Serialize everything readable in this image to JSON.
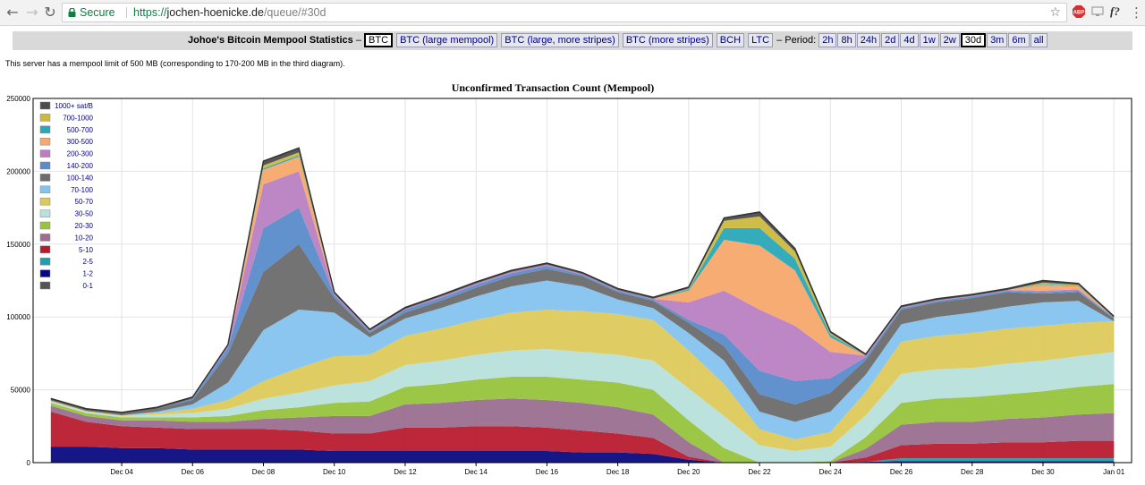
{
  "browser": {
    "secure_label": "Secure",
    "url_scheme": "https://",
    "url_host": "jochen-hoenicke.de",
    "url_path": "/queue/#30d",
    "back_icon": "back-arrow-icon",
    "forward_icon": "forward-arrow-icon",
    "reload_icon": "reload-icon",
    "star_icon": "star-icon",
    "extension_icons": [
      "abp-icon",
      "cast-icon",
      "formula-icon"
    ],
    "formula_label": "f?",
    "menu_icon": "three-dots-icon"
  },
  "header": {
    "site_title": "Johoe's Bitcoin Mempool Statistics",
    "dash": "–",
    "links": [
      {
        "label": "BTC",
        "active": true
      },
      {
        "label": "BTC (large mempool)",
        "active": false
      },
      {
        "label": "BTC (large, more stripes)",
        "active": false
      },
      {
        "label": "BTC (more stripes)",
        "active": false
      },
      {
        "label": "BCH",
        "active": false
      },
      {
        "label": "LTC",
        "active": false
      }
    ],
    "period_label": "– Period:",
    "periods": [
      {
        "label": "2h",
        "active": false
      },
      {
        "label": "8h",
        "active": false
      },
      {
        "label": "24h",
        "active": false
      },
      {
        "label": "2d",
        "active": false
      },
      {
        "label": "4d",
        "active": false
      },
      {
        "label": "1w",
        "active": false
      },
      {
        "label": "2w",
        "active": false
      },
      {
        "label": "30d",
        "active": true
      },
      {
        "label": "3m",
        "active": false
      },
      {
        "label": "6m",
        "active": false
      },
      {
        "label": "all",
        "active": false
      }
    ]
  },
  "notice": "This server has a mempool limit of 500 MB (corresponding to 170-200 MB in the third diagram).",
  "chart_data": {
    "type": "area",
    "stacked": true,
    "title": "Unconfirmed Transaction Count (Mempool)",
    "xlabel": "",
    "ylabel": "",
    "ylim": [
      0,
      250000
    ],
    "yticks": [
      0,
      50000,
      100000,
      150000,
      200000,
      250000
    ],
    "xlim": [
      "2017-12-02",
      "2018-01-01 12:00"
    ],
    "xticks": [
      "Dec 04",
      "Dec 06",
      "Dec 08",
      "Dec 10",
      "Dec 12",
      "Dec 14",
      "Dec 16",
      "Dec 18",
      "Dec 20",
      "Dec 22",
      "Dec 24",
      "Dec 26",
      "Dec 28",
      "Dec 30",
      "Jan 01"
    ],
    "grid": true,
    "legend_position": "top-left",
    "legend_entries": [
      "1000+ sat/B",
      "700-1000",
      "500-700",
      "300-500",
      "200-300",
      "140-200",
      "100-140",
      "70-100",
      "50-70",
      "30-50",
      "20-30",
      "10-20",
      "5-10",
      "2-5",
      "1-2",
      "0-1"
    ],
    "x": [
      "Dec 02",
      "Dec 03",
      "Dec 04",
      "Dec 05",
      "Dec 06",
      "Dec 07",
      "Dec 08",
      "Dec 09",
      "Dec 10",
      "Dec 11",
      "Dec 12",
      "Dec 13",
      "Dec 14",
      "Dec 15",
      "Dec 16",
      "Dec 17",
      "Dec 18",
      "Dec 19",
      "Dec 20",
      "Dec 21",
      "Dec 22",
      "Dec 23",
      "Dec 24",
      "Dec 25",
      "Dec 26",
      "Dec 27",
      "Dec 28",
      "Dec 29",
      "Dec 30",
      "Dec 31",
      "Jan 01"
    ],
    "series": [
      {
        "name": "0-1",
        "color": "#555555",
        "values": [
          0,
          0,
          0,
          0,
          0,
          0,
          0,
          0,
          0,
          0,
          0,
          0,
          0,
          0,
          0,
          0,
          0,
          0,
          0,
          0,
          0,
          0,
          0,
          0,
          0,
          0,
          0,
          0,
          0,
          0,
          0
        ]
      },
      {
        "name": "1-2",
        "color": "#0a0a80",
        "values": [
          11000,
          11000,
          10000,
          10000,
          9000,
          9000,
          9000,
          9000,
          8000,
          8000,
          8000,
          8000,
          8000,
          8000,
          8000,
          7000,
          7000,
          6000,
          2000,
          0,
          0,
          0,
          0,
          500,
          1000,
          1000,
          1000,
          1000,
          1000,
          1000,
          1000
        ]
      },
      {
        "name": "2-5",
        "color": "#1f9fae",
        "values": [
          0,
          0,
          0,
          0,
          0,
          0,
          0,
          0,
          0,
          0,
          0,
          0,
          0,
          0,
          0,
          0,
          0,
          0,
          0,
          0,
          0,
          0,
          0,
          0,
          2000,
          2000,
          2000,
          2000,
          2000,
          2000,
          2000
        ]
      },
      {
        "name": "5-10",
        "color": "#b81b2e",
        "values": [
          24000,
          17000,
          15000,
          14000,
          14000,
          14000,
          14000,
          13000,
          12000,
          12000,
          16000,
          16000,
          17000,
          17000,
          16000,
          15000,
          13000,
          11000,
          2000,
          0,
          0,
          0,
          0,
          3000,
          9000,
          10000,
          10000,
          11000,
          11000,
          12000,
          12000
        ]
      },
      {
        "name": "10-20",
        "color": "#9a6f8f",
        "values": [
          4000,
          4000,
          4000,
          5000,
          5000,
          5000,
          7000,
          9000,
          12000,
          12000,
          16000,
          17000,
          18000,
          19000,
          19000,
          19000,
          18000,
          16000,
          10000,
          0,
          0,
          0,
          0,
          6000,
          14000,
          15000,
          15000,
          16000,
          17000,
          18000,
          19000
        ]
      },
      {
        "name": "20-30",
        "color": "#97c43c",
        "values": [
          2000,
          2000,
          2000,
          2000,
          3000,
          4000,
          6000,
          7000,
          9000,
          10000,
          12000,
          13000,
          14000,
          15000,
          16000,
          16000,
          17000,
          17000,
          15000,
          10000,
          0,
          0,
          1000,
          8000,
          15000,
          16000,
          17000,
          17000,
          18000,
          19000,
          20000
        ]
      },
      {
        "name": "30-50",
        "color": "#b8e0dc",
        "values": [
          1000,
          1000,
          1000,
          2000,
          3000,
          5000,
          8000,
          10000,
          12000,
          14000,
          15000,
          16000,
          17000,
          18000,
          19000,
          19000,
          19000,
          20000,
          22000,
          22000,
          12000,
          8000,
          10000,
          15000,
          20000,
          20000,
          20000,
          21000,
          21000,
          21000,
          22000
        ]
      },
      {
        "name": "50-70",
        "color": "#ddc95b",
        "values": [
          500,
          500,
          500,
          1000,
          3000,
          6000,
          12000,
          17000,
          20000,
          18000,
          20000,
          22000,
          24000,
          26000,
          27000,
          28000,
          28000,
          28000,
          26000,
          22000,
          11000,
          8000,
          10000,
          16000,
          22000,
          23000,
          24000,
          24000,
          24000,
          23000,
          21000
        ]
      },
      {
        "name": "70-100",
        "color": "#84c3ee",
        "values": [
          0,
          0,
          0,
          1000,
          3000,
          12000,
          35000,
          40000,
          30000,
          12000,
          12000,
          14000,
          16000,
          18000,
          20000,
          17000,
          10000,
          8000,
          12000,
          16000,
          12000,
          12000,
          14000,
          12000,
          12000,
          13000,
          14000,
          15000,
          16000,
          15000,
          0
        ]
      },
      {
        "name": "100-140",
        "color": "#6c6c6c",
        "values": [
          500,
          500,
          1000,
          2000,
          3000,
          20000,
          40000,
          45000,
          10000,
          3000,
          4000,
          5000,
          6000,
          7000,
          8000,
          7000,
          5000,
          5000,
          7000,
          10000,
          12000,
          12000,
          13000,
          10000,
          10000,
          10000,
          10000,
          10000,
          6000,
          6000,
          2000
        ]
      },
      {
        "name": "140-200",
        "color": "#5a8cca",
        "values": [
          0,
          0,
          0,
          0,
          1000,
          4000,
          30000,
          25000,
          2000,
          1000,
          2000,
          2000,
          2000,
          2000,
          2000,
          1000,
          1000,
          1000,
          2000,
          8000,
          16000,
          16000,
          10000,
          2000,
          1000,
          1000,
          1000,
          1000,
          1000,
          1000,
          500
        ]
      },
      {
        "name": "200-300",
        "color": "#b97fc1",
        "values": [
          0,
          0,
          0,
          0,
          0,
          1000,
          30000,
          25000,
          1000,
          500,
          500,
          1000,
          1000,
          1000,
          1000,
          500,
          500,
          500,
          12000,
          30000,
          42000,
          38000,
          18000,
          1000,
          500,
          500,
          500,
          500,
          1000,
          1000,
          0
        ]
      },
      {
        "name": "300-500",
        "color": "#f7a86c",
        "values": [
          0,
          0,
          0,
          0,
          0,
          0,
          10000,
          10000,
          0,
          0,
          0,
          0,
          0,
          0,
          0,
          0,
          0,
          0,
          8000,
          35000,
          44000,
          38000,
          10000,
          0,
          0,
          0,
          0,
          0,
          4000,
          2000,
          0
        ]
      },
      {
        "name": "500-700",
        "color": "#2aa8b8",
        "values": [
          0,
          0,
          0,
          0,
          0,
          0,
          1000,
          1000,
          0,
          0,
          0,
          0,
          0,
          0,
          0,
          0,
          0,
          0,
          1000,
          8000,
          12000,
          8000,
          2000,
          0,
          0,
          0,
          0,
          0,
          500,
          500,
          0
        ]
      },
      {
        "name": "700-1000",
        "color": "#cdb93f",
        "values": [
          0,
          0,
          0,
          0,
          0,
          0,
          2000,
          2000,
          0,
          0,
          0,
          0,
          0,
          0,
          0,
          0,
          0,
          0,
          500,
          5000,
          8000,
          5000,
          1000,
          0,
          0,
          0,
          0,
          0,
          1000,
          500,
          0
        ]
      },
      {
        "name": "1000+ sat/B",
        "color": "#4d4d4d",
        "values": [
          1000,
          1000,
          1000,
          1000,
          1000,
          1000,
          3000,
          3000,
          1000,
          1000,
          1000,
          1000,
          1000,
          1000,
          1000,
          1000,
          1000,
          1000,
          1000,
          2000,
          3000,
          2000,
          1000,
          1000,
          1000,
          1000,
          1000,
          1000,
          1500,
          1000,
          1000
        ]
      }
    ]
  }
}
